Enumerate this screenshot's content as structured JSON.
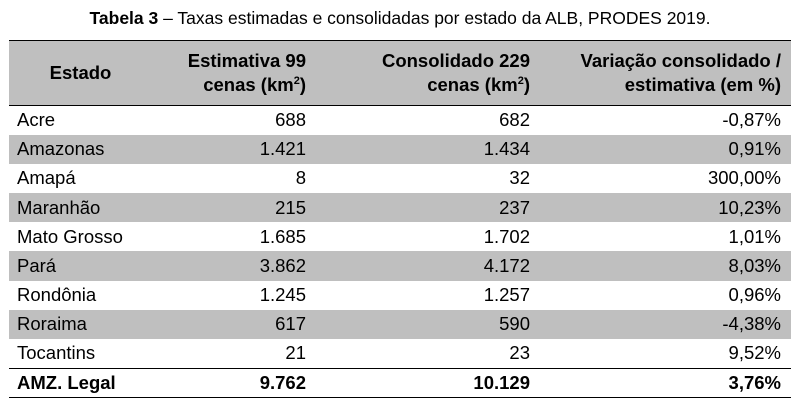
{
  "caption": {
    "label": "Tabela 3",
    "text": " – Taxas estimadas e consolidadas por estado da ALB, PRODES 2019."
  },
  "table": {
    "headers": [
      {
        "lines": [
          "Estado"
        ]
      },
      {
        "line1": "Estimativa 99",
        "line2_pre": "cenas (km",
        "sup": "2",
        "line2_post": ")"
      },
      {
        "line1": "Consolidado 229",
        "line2_pre": "cenas (km",
        "sup": "2",
        "line2_post": ")"
      },
      {
        "line1": "Variação consolidado /",
        "line2": "estimativa (em %)"
      }
    ],
    "rows": [
      {
        "estado": "Acre",
        "estimativa": "688",
        "consolidado": "682",
        "variacao": "-0,87%",
        "shaded": false
      },
      {
        "estado": "Amazonas",
        "estimativa": "1.421",
        "consolidado": "1.434",
        "variacao": "0,91%",
        "shaded": true
      },
      {
        "estado": "Amapá",
        "estimativa": "8",
        "consolidado": "32",
        "variacao": "300,00%",
        "shaded": false
      },
      {
        "estado": "Maranhão",
        "estimativa": "215",
        "consolidado": "237",
        "variacao": "10,23%",
        "shaded": true
      },
      {
        "estado": "Mato Grosso",
        "estimativa": "1.685",
        "consolidado": "1.702",
        "variacao": "1,01%",
        "shaded": false
      },
      {
        "estado": "Pará",
        "estimativa": "3.862",
        "consolidado": "4.172",
        "variacao": "8,03%",
        "shaded": true
      },
      {
        "estado": "Rondônia",
        "estimativa": "1.245",
        "consolidado": "1.257",
        "variacao": "0,96%",
        "shaded": false
      },
      {
        "estado": "Roraima",
        "estimativa": "617",
        "consolidado": "590",
        "variacao": "-4,38%",
        "shaded": true
      },
      {
        "estado": "Tocantins",
        "estimativa": "21",
        "consolidado": "23",
        "variacao": "9,52%",
        "shaded": false
      }
    ],
    "total": {
      "estado": "AMZ. Legal",
      "estimativa": "9.762",
      "consolidado": "10.129",
      "variacao": "3,76%"
    }
  },
  "colors": {
    "header_bg": "#bfbfbf",
    "shaded_row_bg": "#bfbfbf",
    "text": "#000000"
  }
}
